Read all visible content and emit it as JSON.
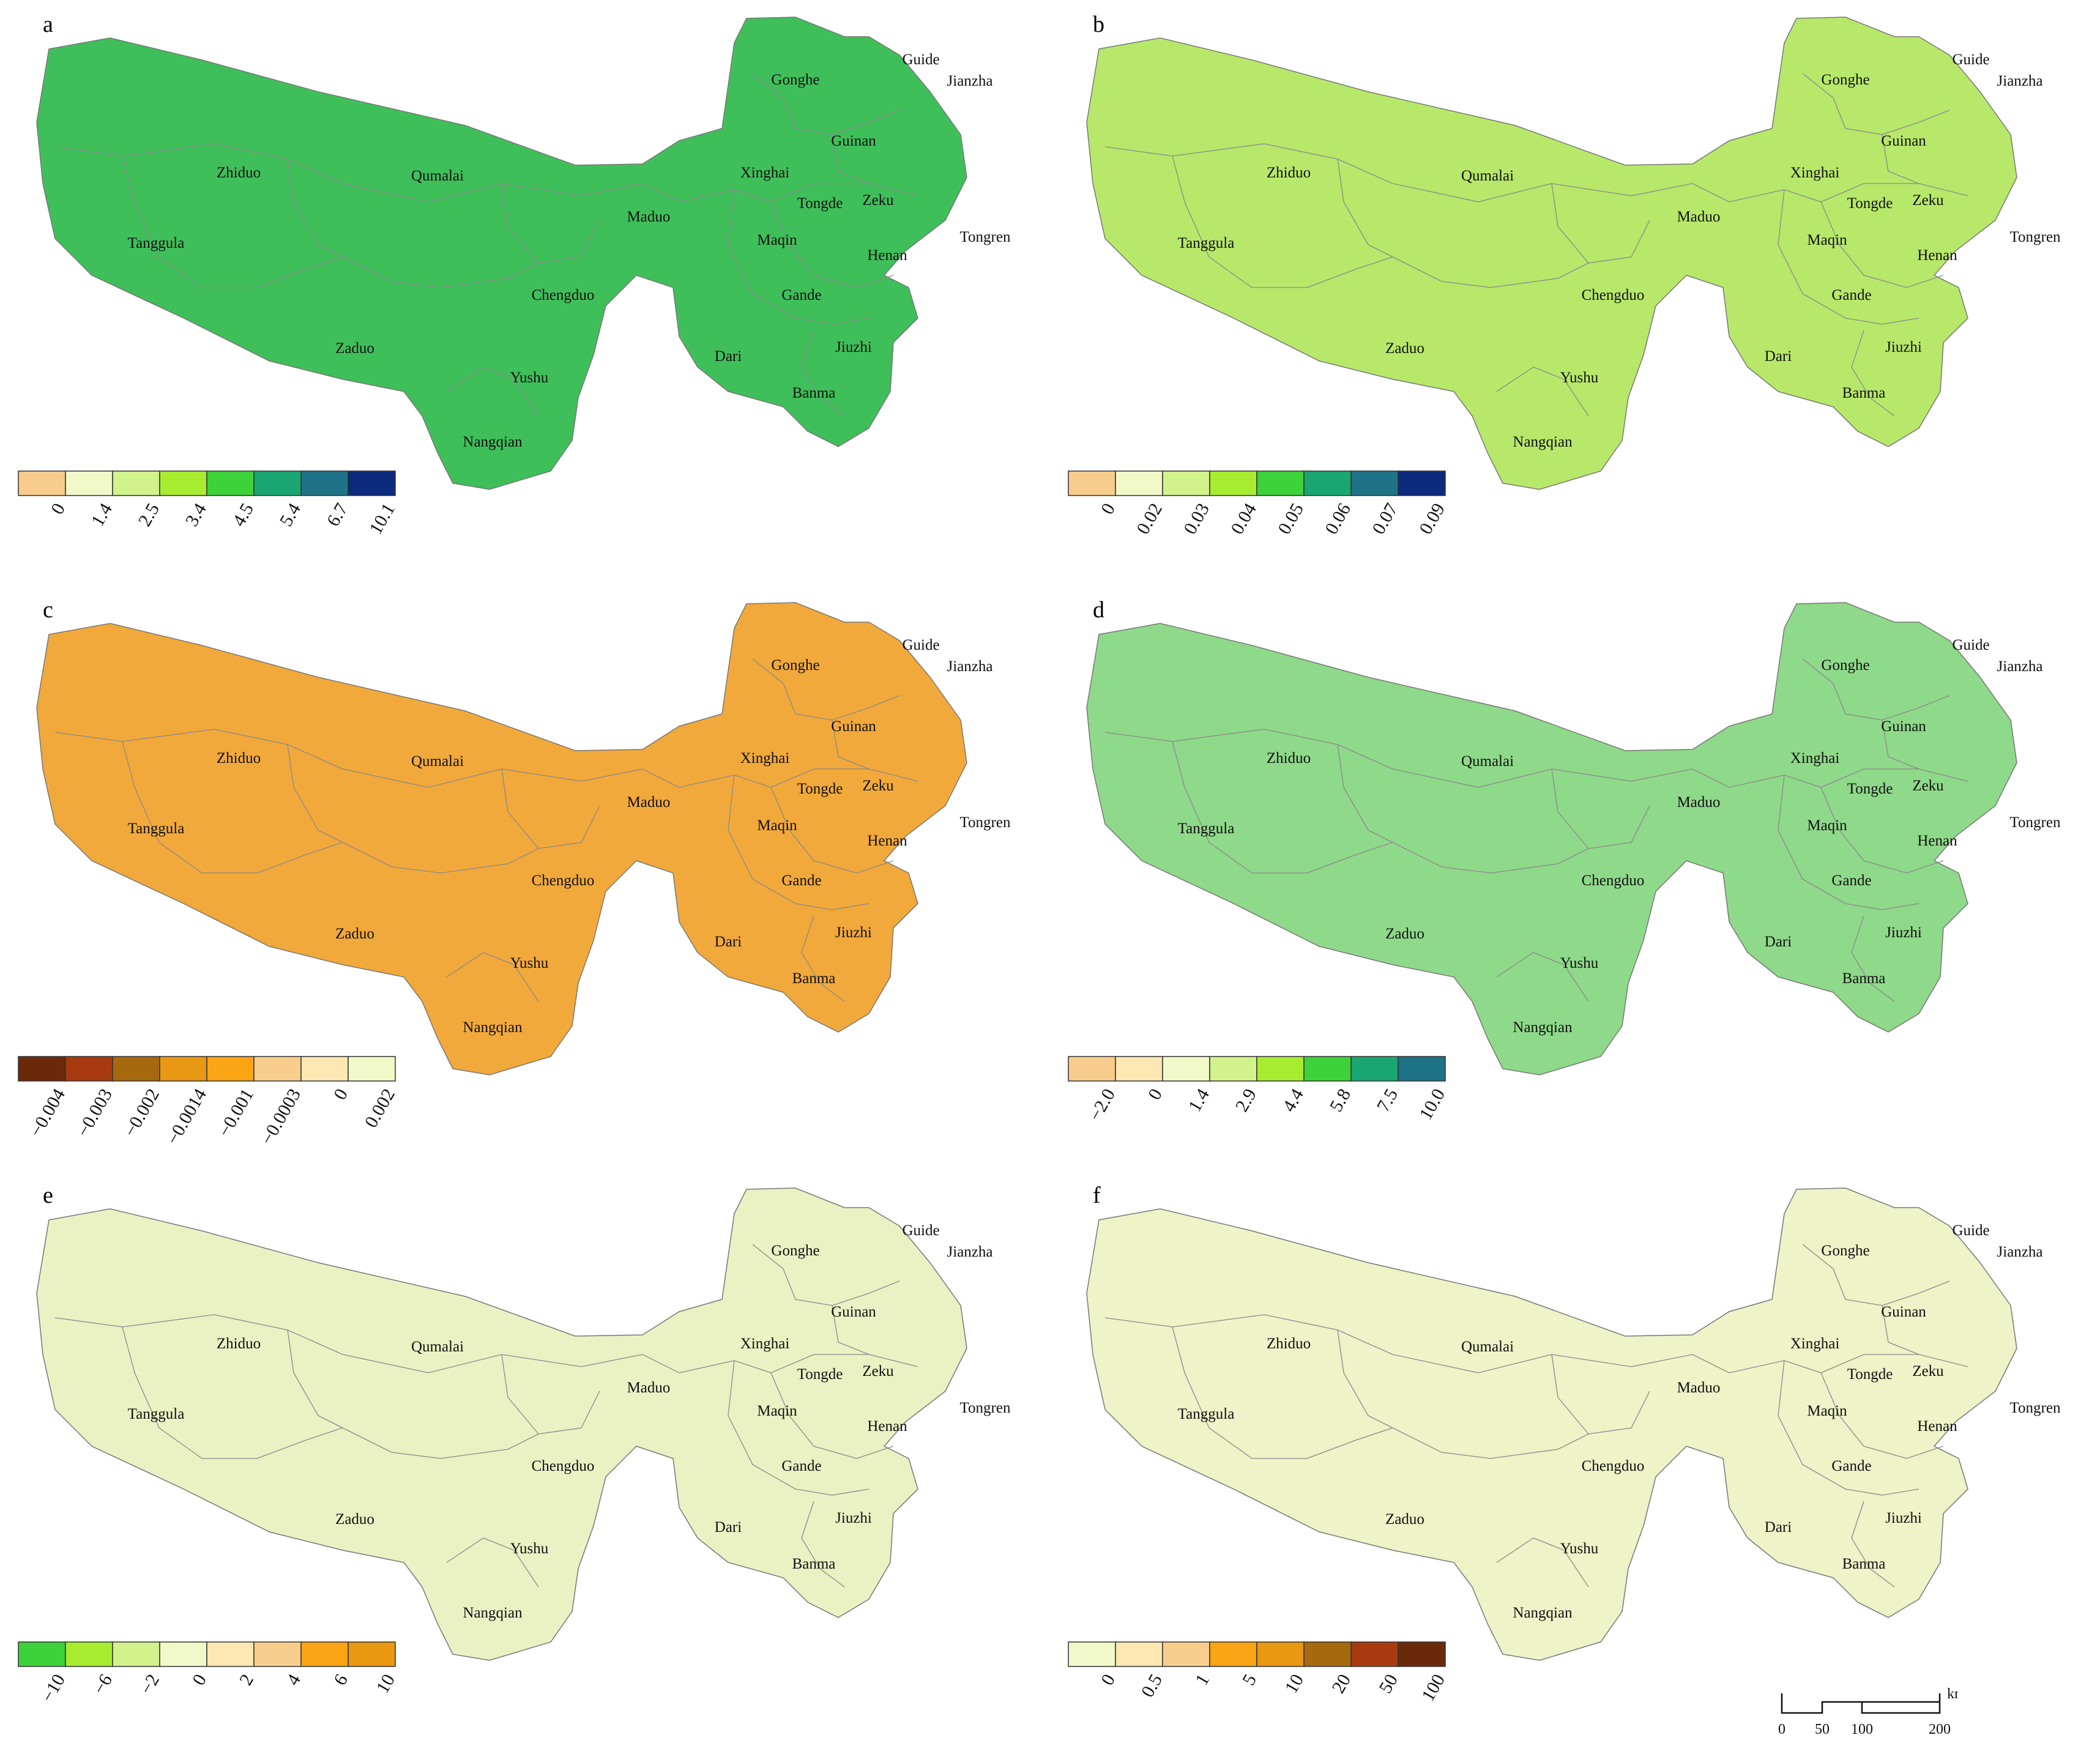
{
  "panels": [
    {
      "id": "a",
      "label": "a",
      "fill": "#3fbf5a",
      "legend": {
        "colors": [
          "#f7cc8c",
          "#f1f9c9",
          "#d2f28c",
          "#a8ec30",
          "#3ed23a",
          "#1aa672",
          "#1e7387",
          "#0c2a7c"
        ],
        "ticks": [
          "0",
          "1.4",
          "2.5",
          "3.4",
          "4.5",
          "5.4",
          "6.7",
          "10.1"
        ]
      },
      "places": [
        "Guide",
        "Jianzha",
        "Gonghe",
        "Guinan",
        "Xinghai",
        "Tongde",
        "Zeku",
        "Tongren",
        "Maduo",
        "Maqin",
        "Henan",
        "Zhiduo",
        "Qumalai",
        "Tanggula",
        "Chengduo",
        "Gande",
        "Zaduo",
        "Dari",
        "Jiuzhi",
        "Yushu",
        "Banma",
        "Nangqian"
      ]
    },
    {
      "id": "b",
      "label": "b",
      "fill": "#b7e86a",
      "legend": {
        "colors": [
          "#f7cc8c",
          "#f1f9c9",
          "#d2f28c",
          "#a8ec30",
          "#3ed23a",
          "#1aa672",
          "#1e7387",
          "#0c2a7c"
        ],
        "ticks": [
          "0",
          "0.02",
          "0.03",
          "0.04",
          "0.05",
          "0.06",
          "0.07",
          "0.09"
        ]
      },
      "places": [
        "Guide",
        "Gonghe",
        "Jianzha",
        "Guinan",
        "Xinghai",
        "Zhiduo",
        "Qumalai",
        "Tongde",
        "Zeku",
        "Tongren",
        "Maduo",
        "Maqin",
        "Henan",
        "Tanggula",
        "Gande",
        "Chengduo",
        "Jiuzhi",
        "Dari",
        "Zaduo",
        "Yushu",
        "Banma",
        "Nangqian"
      ]
    },
    {
      "id": "c",
      "label": "c",
      "fill": "#f2a93b",
      "legend": {
        "colors": [
          "#6a2a0a",
          "#a83a10",
          "#a6690d",
          "#e99813",
          "#fba414",
          "#f9ce8c",
          "#fde7b2",
          "#f1f9c9"
        ],
        "ticks": [
          "−0.004",
          "−0.003",
          "−0.002",
          "−0.0014",
          "−0.001",
          "−0.0003",
          "0",
          "0.002"
        ]
      },
      "places": [
        "Guide",
        "Gonghe",
        "Jianzha",
        "Guinan",
        "Zhiduo",
        "Qumalai",
        "Xinghai",
        "Tongde",
        "Zeku",
        "Tanggula",
        "Maduo",
        "Tongren",
        "Maqin",
        "Henan",
        "Chengduo",
        "Gande",
        "Zaduo",
        "Jiuzhi",
        "Dari",
        "Yushu",
        "Banma",
        "Nangqian"
      ]
    },
    {
      "id": "d",
      "label": "d",
      "fill": "#8fd98a",
      "legend": {
        "colors": [
          "#f7cc8c",
          "#fde7b2",
          "#f1f9c9",
          "#d2f28c",
          "#a8ec30",
          "#3ed23a",
          "#1aa672",
          "#1e7387"
        ],
        "ticks": [
          "−2.0",
          "0",
          "1.4",
          "2.9",
          "4.4",
          "5.8",
          "7.5",
          "10.0"
        ]
      },
      "places": [
        "Guide",
        "Gonghe",
        "Jianzha",
        "Guinan",
        "Zhiduo",
        "Qumalai",
        "Xinghai",
        "Tongde",
        "Zeku",
        "Tongren",
        "Tanggula",
        "Maduo",
        "Maqin",
        "Henan",
        "Chengduo",
        "Gande",
        "Zaduo",
        "Jiuzhi",
        "Dari",
        "Yushu",
        "Banma",
        "Nangqian"
      ]
    },
    {
      "id": "e",
      "label": "e",
      "fill": "#eaf2c4",
      "legend": {
        "colors": [
          "#3ed23a",
          "#a8ec30",
          "#d2f28c",
          "#f1f9c9",
          "#fde7b2",
          "#f9ce8c",
          "#fba414",
          "#e99813"
        ],
        "ticks": [
          "−10",
          "−6",
          "−2",
          "0",
          "2",
          "4",
          "6",
          "10"
        ]
      },
      "places": [
        "Guide",
        "Gonghe",
        "Jianzha",
        "Guinan",
        "Zhiduo",
        "Qumalai",
        "Xinghai",
        "Tongde",
        "Zeku",
        "Maduo",
        "Tongren",
        "Tanggula",
        "Maqin",
        "Henan",
        "Chengduo",
        "Gande",
        "Zaduo",
        "Dari",
        "Jiuzhi",
        "Yushu",
        "Banma",
        "Nangqian"
      ]
    },
    {
      "id": "f",
      "label": "f",
      "fill": "#eef3c8",
      "legend": {
        "colors": [
          "#f1f9c9",
          "#fde7b2",
          "#f9ce8c",
          "#fba414",
          "#e99813",
          "#a6690d",
          "#a83a10",
          "#6a2a0a"
        ],
        "ticks": [
          "0",
          "0.5",
          "1",
          "5",
          "10",
          "20",
          "50",
          "100"
        ]
      },
      "places": [
        "Guide",
        "Gonghe",
        "Jianzha",
        "Guinan",
        "Zhiduo",
        "Qumalai",
        "Xinghai",
        "Tongde",
        "Zeku",
        "Maduo",
        "Tongren",
        "Tanggula",
        "Maqin",
        "Henan",
        "Gande",
        "Chengduo",
        "Jiuzhi",
        "Zaduo",
        "Dari",
        "Yushu",
        "Banma",
        "Nangqian"
      ]
    }
  ],
  "scale_bar": {
    "ticks": [
      "0",
      "50",
      "100",
      "200"
    ],
    "unit": "km"
  }
}
